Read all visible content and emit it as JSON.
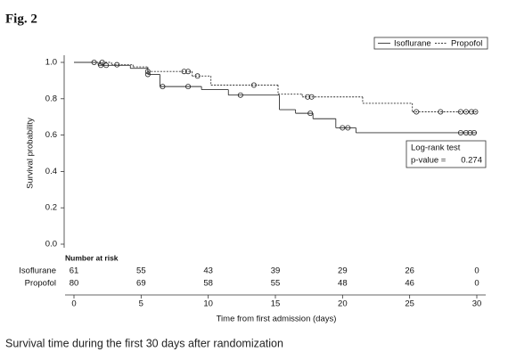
{
  "figure_label": "Fig. 2",
  "caption": "Survival time during the first 30 days after randomization",
  "chart_data": {
    "type": "kaplan-meier",
    "x_label": "Time from first admission (days)",
    "y_label": "Survival probability",
    "xlim": [
      0,
      30
    ],
    "ylim": [
      0,
      1
    ],
    "xticks": [
      0,
      5,
      10,
      15,
      20,
      25,
      30
    ],
    "yticks": [
      {
        "value": 0,
        "label": "0.0"
      },
      {
        "value": 0.2,
        "label": "0.2"
      },
      {
        "value": 0.4,
        "label": "0.4"
      },
      {
        "value": 0.6,
        "label": "0.6"
      },
      {
        "value": 0.8,
        "label": "0.8"
      },
      {
        "value": 1,
        "label": "1.0"
      }
    ],
    "series": [
      {
        "name": "Isoflurane",
        "color": "#333333",
        "dash": false,
        "x": [
          0,
          1.8,
          4.2,
          5.5,
          6.4,
          9.5,
          11.5,
          15.3,
          16.5,
          17.8,
          19.5,
          21,
          30
        ],
        "values": [
          1.0,
          0.984,
          0.967,
          0.934,
          0.867,
          0.85,
          0.82,
          0.74,
          0.72,
          0.69,
          0.64,
          0.613,
          0.613
        ],
        "censor_x": [
          2.0,
          2.4,
          5.5,
          6.6,
          8.5,
          12.4,
          17.6,
          20.0,
          20.4,
          28.8,
          29.2,
          29.5,
          29.8
        ],
        "censor_values": [
          0.984,
          0.984,
          0.934,
          0.867,
          0.867,
          0.82,
          0.72,
          0.64,
          0.64,
          0.613,
          0.613,
          0.613,
          0.613
        ],
        "at_risk": [
          61,
          55,
          43,
          39,
          29,
          26,
          0
        ]
      },
      {
        "name": "Propofol",
        "color": "#333333",
        "dash": true,
        "x": [
          0,
          2.8,
          4.4,
          5.5,
          8.8,
          10.2,
          15.2,
          17,
          21.5,
          25.2,
          30
        ],
        "values": [
          1.0,
          0.987,
          0.975,
          0.95,
          0.925,
          0.875,
          0.825,
          0.81,
          0.775,
          0.728,
          0.728
        ],
        "censor_x": [
          1.5,
          2.1,
          3.2,
          5.5,
          8.2,
          8.5,
          9.2,
          13.4,
          17.4,
          17.7,
          25.5,
          27.3,
          28.8,
          29.2,
          29.6,
          29.9
        ],
        "censor_values": [
          1.0,
          1.0,
          0.987,
          0.95,
          0.95,
          0.95,
          0.925,
          0.875,
          0.81,
          0.81,
          0.728,
          0.728,
          0.728,
          0.728,
          0.728,
          0.728
        ],
        "at_risk": [
          80,
          69,
          58,
          55,
          48,
          46,
          0
        ]
      }
    ],
    "legend": "top-right",
    "annotation": {
      "title": "Log-rank test",
      "label": "p-value =",
      "value": "0.274"
    },
    "risk_table_title": "Number at risk"
  }
}
